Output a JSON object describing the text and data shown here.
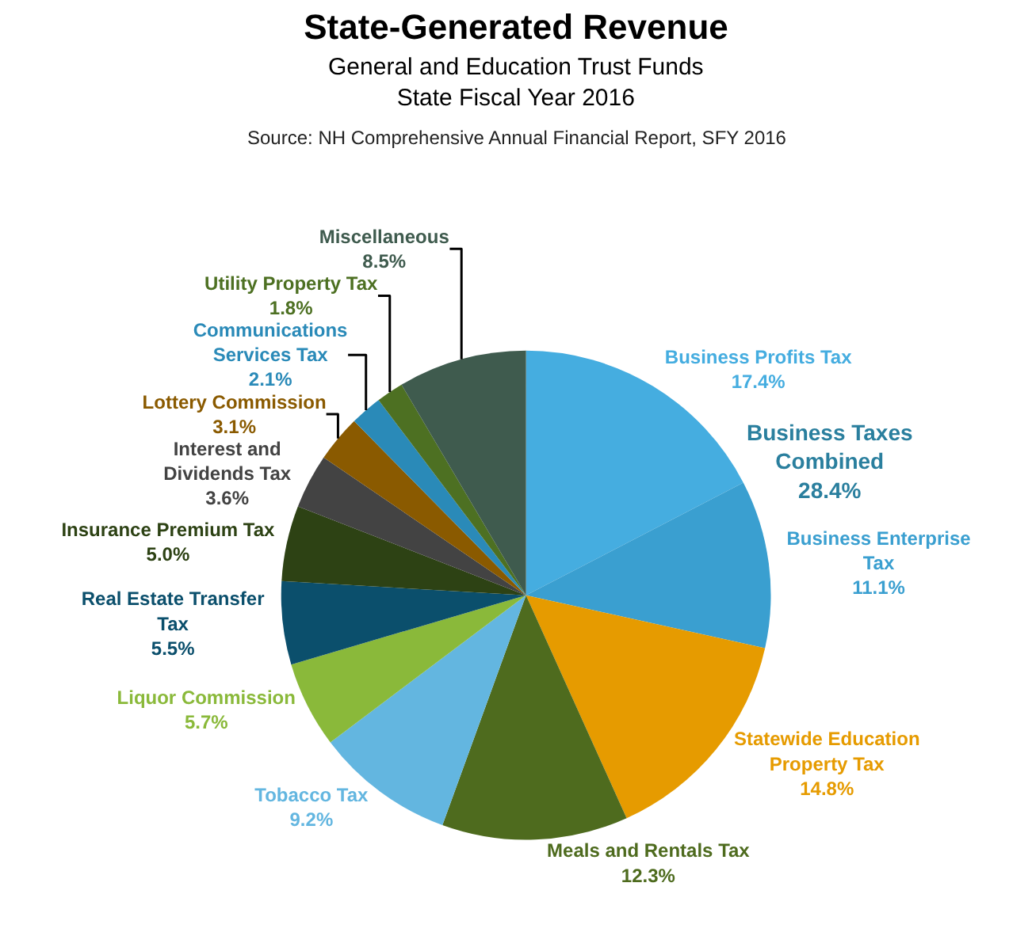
{
  "chart_data": {
    "type": "pie",
    "title": "State-Generated Revenue",
    "subtitle": "General and Education Trust Funds\nState Fiscal Year 2016",
    "categories": [
      "Business Profits Tax",
      "Business Enterprise Tax",
      "Statewide Education Property Tax",
      "Meals and Rentals Tax",
      "Tobacco Tax",
      "Liquor Commission",
      "Real Estate Transfer Tax",
      "Insurance Premium Tax",
      "Interest and Dividends Tax",
      "Lottery Commission",
      "Communications Services Tax",
      "Utility Property Tax",
      "Miscellaneous"
    ],
    "values": [
      17.4,
      11.1,
      14.8,
      12.3,
      9.2,
      5.7,
      5.5,
      5.0,
      3.6,
      3.1,
      2.1,
      1.8,
      8.5
    ],
    "value_labels": [
      "17.4%",
      "11.1%",
      "14.8%",
      "12.3%",
      "9.2%",
      "5.7%",
      "5.5%",
      "5.0%",
      "3.6%",
      "3.1%",
      "2.1%",
      "1.8%",
      "8.5%"
    ],
    "colors": [
      "#45ade0",
      "#3a9fd0",
      "#e69b00",
      "#4e6b1e",
      "#63b6e0",
      "#8ab93a",
      "#0b4f6c",
      "#2d4214",
      "#434343",
      "#8a5a00",
      "#2a8ab8",
      "#4d7022",
      "#3f5b4e"
    ],
    "annotations": [
      "Source: NH Comprehensive Annual Financial Report, SFY 2016",
      "Business Taxes\nCombined\n28.4%"
    ],
    "legend": false
  }
}
